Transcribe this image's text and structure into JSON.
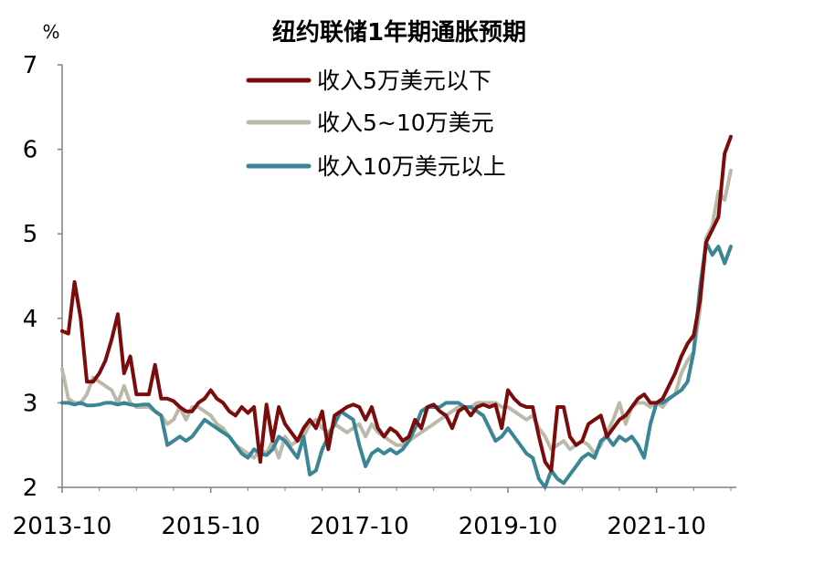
{
  "chart_data": {
    "type": "line",
    "title": "纽约联储1年期通胀预期",
    "ylabel": "%",
    "xlabel": "",
    "ylim": [
      2,
      7
    ],
    "yticks": [
      "2",
      "3",
      "4",
      "5",
      "6",
      "7"
    ],
    "xticks": [
      "2013-10",
      "2015-10",
      "2017-10",
      "2019-10",
      "2021-10"
    ],
    "legend_position": "top-center",
    "x_start": "2013-10",
    "x_end": "2021-10",
    "series": [
      {
        "name": "收入5万美元以下",
        "color": "#7a0c0c",
        "values": [
          3.85,
          3.82,
          4.43,
          4.0,
          3.25,
          3.25,
          3.35,
          3.5,
          3.75,
          4.05,
          3.35,
          3.55,
          3.1,
          3.1,
          3.1,
          3.45,
          3.05,
          3.05,
          3.02,
          2.95,
          2.9,
          2.9,
          3.0,
          3.05,
          3.15,
          3.05,
          3.0,
          2.9,
          2.85,
          2.95,
          2.88,
          2.95,
          2.3,
          2.98,
          2.55,
          2.95,
          2.75,
          2.65,
          2.55,
          2.7,
          2.8,
          2.7,
          2.9,
          2.45,
          2.85,
          2.9,
          2.95,
          2.98,
          2.95,
          2.8,
          2.95,
          2.7,
          2.6,
          2.7,
          2.65,
          2.55,
          2.6,
          2.8,
          2.7,
          2.95,
          2.98,
          2.9,
          2.85,
          2.7,
          2.9,
          2.95,
          2.85,
          2.95,
          2.98,
          2.95,
          2.98,
          2.7,
          3.15,
          3.05,
          2.98,
          2.95,
          2.95,
          2.6,
          2.3,
          2.2,
          2.95,
          2.95,
          2.6,
          2.5,
          2.55,
          2.75,
          2.8,
          2.85,
          2.6,
          2.7,
          2.8,
          2.85,
          2.95,
          3.05,
          3.1,
          3.0,
          3.0,
          3.05,
          3.2,
          3.35,
          3.55,
          3.7,
          3.8,
          4.2,
          4.9,
          5.05,
          5.2,
          5.95,
          6.15
        ]
      },
      {
        "name": "收入5~10万美元",
        "color": "#bdb9aa",
        "values": [
          3.4,
          3.05,
          3.0,
          3.0,
          3.1,
          3.3,
          3.25,
          3.2,
          3.15,
          3.0,
          3.2,
          3.0,
          2.95,
          2.95,
          2.95,
          2.9,
          2.85,
          2.75,
          2.8,
          2.95,
          2.8,
          2.95,
          2.95,
          2.9,
          2.85,
          2.75,
          2.7,
          2.6,
          2.5,
          2.45,
          2.4,
          2.35,
          2.45,
          2.4,
          2.55,
          2.35,
          2.6,
          2.5,
          2.55,
          2.6,
          2.75,
          2.8,
          2.7,
          2.65,
          2.75,
          2.7,
          2.65,
          2.7,
          2.75,
          2.6,
          2.75,
          2.65,
          2.6,
          2.55,
          2.5,
          2.5,
          2.55,
          2.6,
          2.65,
          2.7,
          2.75,
          2.8,
          2.85,
          2.9,
          2.95,
          2.95,
          2.95,
          3.0,
          3.0,
          3.0,
          3.0,
          2.95,
          2.95,
          2.9,
          2.85,
          2.8,
          2.85,
          2.7,
          2.6,
          2.45,
          2.5,
          2.55,
          2.45,
          2.5,
          2.55,
          2.5,
          2.4,
          2.5,
          2.65,
          2.8,
          3.0,
          2.75,
          2.95,
          3.0,
          3.0,
          2.95,
          3.0,
          2.95,
          3.05,
          3.1,
          3.35,
          3.5,
          3.6,
          4.1,
          4.95,
          5.1,
          5.5,
          5.4,
          5.75
        ]
      },
      {
        "name": "收入10万美元以上",
        "color": "#3a8695",
        "values": [
          3.0,
          3.0,
          2.98,
          3.0,
          2.97,
          2.97,
          2.98,
          3.0,
          3.0,
          2.98,
          3.0,
          2.98,
          2.97,
          2.98,
          2.98,
          2.9,
          2.85,
          2.5,
          2.55,
          2.6,
          2.55,
          2.6,
          2.7,
          2.8,
          2.75,
          2.7,
          2.65,
          2.6,
          2.5,
          2.4,
          2.35,
          2.45,
          2.4,
          2.38,
          2.45,
          2.6,
          2.55,
          2.45,
          2.35,
          2.6,
          2.15,
          2.2,
          2.45,
          2.6,
          2.75,
          2.9,
          2.85,
          2.8,
          2.5,
          2.25,
          2.4,
          2.45,
          2.4,
          2.45,
          2.4,
          2.45,
          2.55,
          2.7,
          2.9,
          2.95,
          2.95,
          2.95,
          3.0,
          3.0,
          3.0,
          2.95,
          2.95,
          2.9,
          2.85,
          2.7,
          2.55,
          2.6,
          2.7,
          2.6,
          2.5,
          2.4,
          2.35,
          2.1,
          2.0,
          2.2,
          2.1,
          2.05,
          2.15,
          2.25,
          2.35,
          2.4,
          2.35,
          2.55,
          2.6,
          2.5,
          2.6,
          2.55,
          2.6,
          2.5,
          2.35,
          2.75,
          3.0,
          3.0,
          3.05,
          3.1,
          3.15,
          3.25,
          3.6,
          4.35,
          4.9,
          4.75,
          4.85,
          4.65,
          4.85
        ]
      }
    ]
  }
}
